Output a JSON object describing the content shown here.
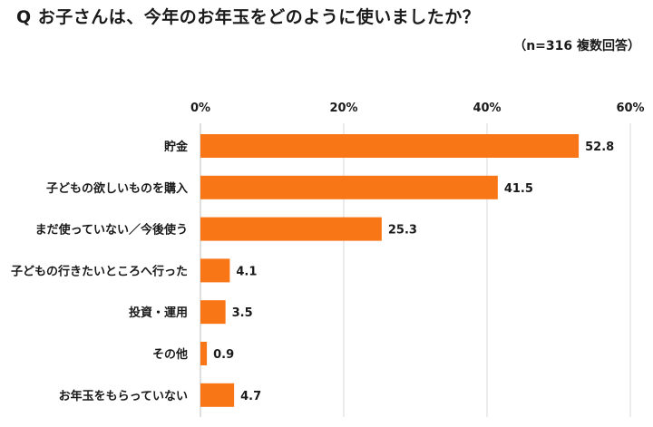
{
  "title": "Q お子さんは、今年のお年玉をどのように使いましたか？",
  "note": "（n=316 複数回答）",
  "colors": {
    "bar": "#F97616",
    "grid": "#D9D9D9",
    "axis": "#BFBFBF"
  },
  "chart_data": {
    "type": "bar",
    "orientation": "horizontal",
    "categories": [
      "貯金",
      "子どもの欲しいものを購入",
      "まだ使っていない／今後使う",
      "子どもの行きたいところへ行った",
      "投資・運用",
      "その他",
      "お年玉をもらっていない"
    ],
    "values": [
      52.8,
      41.5,
      25.3,
      4.1,
      3.5,
      0.9,
      4.7
    ],
    "value_labels": [
      "52.8",
      "41.5",
      "25.3",
      "4.1",
      "3.5",
      "0.9",
      "4.7"
    ],
    "xlim": [
      0,
      60
    ],
    "ticks": [
      0,
      20,
      40,
      60
    ],
    "tick_labels": [
      "0%",
      "20%",
      "40%",
      "60%"
    ],
    "grid": true,
    "axis_position": "top"
  }
}
